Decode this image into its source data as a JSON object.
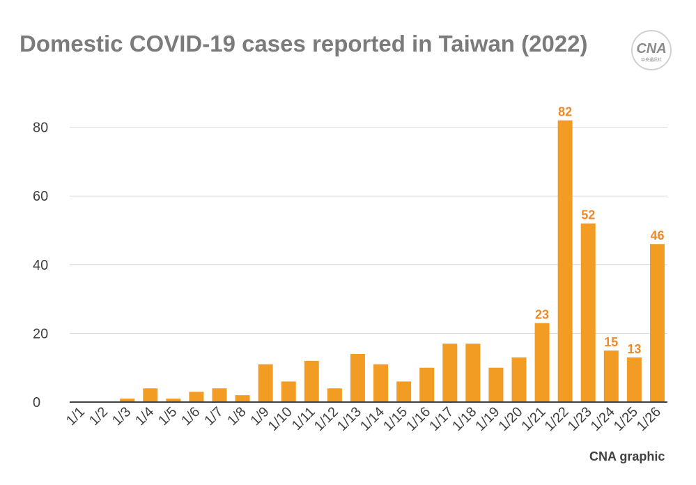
{
  "title": "Domestic COVID-19 cases reported in Taiwan (2022)",
  "credit": "CNA graphic",
  "logo": {
    "icon": "cna-logo-icon",
    "text": "CNA",
    "subtext": "中央通訊社"
  },
  "colors": {
    "bar": "#f39c24",
    "label": "#ee8a2a",
    "title": "#7b7b7b",
    "grid": "#d9d9d9",
    "axis": "#404040"
  },
  "chart_data": {
    "type": "bar",
    "title": "Domestic COVID-19 cases reported in Taiwan (2022)",
    "xlabel": "",
    "ylabel": "",
    "ylim": [
      0,
      80
    ],
    "yticks": [
      0,
      20,
      40,
      60,
      80
    ],
    "grid": true,
    "categories": [
      "1/1",
      "1/2",
      "1/3",
      "1/4",
      "1/5",
      "1/6",
      "1/7",
      "1/8",
      "1/9",
      "1/10",
      "1/11",
      "1/12",
      "1/13",
      "1/14",
      "1/15",
      "1/16",
      "1/17",
      "1/18",
      "1/19",
      "1/20",
      "1/21",
      "1/22",
      "1/23",
      "1/24",
      "1/25",
      "1/26"
    ],
    "values": [
      0,
      0,
      1,
      4,
      1,
      3,
      4,
      2,
      11,
      6,
      12,
      4,
      14,
      11,
      6,
      10,
      17,
      17,
      10,
      13,
      23,
      82,
      52,
      15,
      13,
      46
    ],
    "data_labels": [
      {
        "category": "1/21",
        "text": "23"
      },
      {
        "category": "1/22",
        "text": "82"
      },
      {
        "category": "1/23",
        "text": "52"
      },
      {
        "category": "1/24",
        "text": "15"
      },
      {
        "category": "1/25",
        "text": "13"
      },
      {
        "category": "1/26",
        "text": "46"
      }
    ]
  }
}
